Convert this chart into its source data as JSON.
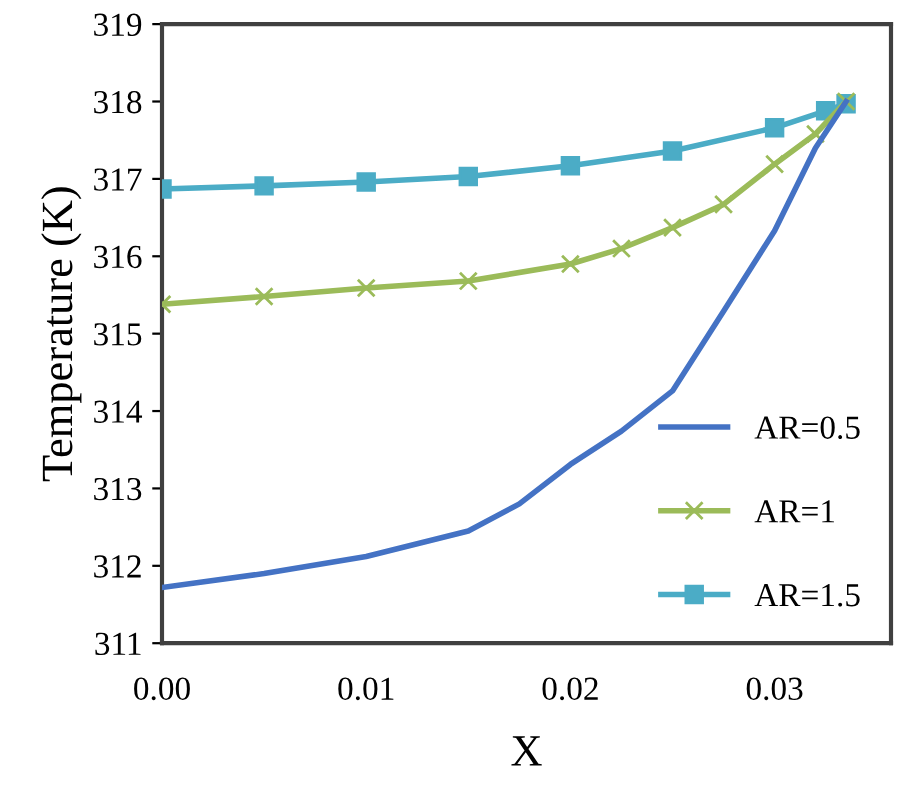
{
  "chart_data": {
    "type": "line",
    "xlabel": "X",
    "ylabel": "Temperature (K)",
    "xlim": [
      0,
      0.0357
    ],
    "ylim": [
      311,
      319
    ],
    "xticks": [
      {
        "value": 0,
        "label": "0.00"
      },
      {
        "value": 0.01,
        "label": "0.01"
      },
      {
        "value": 0.02,
        "label": "0.02"
      },
      {
        "value": 0.03,
        "label": "0.03"
      }
    ],
    "yticks": [
      311,
      312,
      313,
      314,
      315,
      316,
      317,
      318,
      319
    ],
    "grid": false,
    "legend": "lower right",
    "series": [
      {
        "name": "AR=0.5",
        "color": "#4472c4",
        "marker": "none",
        "x": [
          0,
          0.005,
          0.01,
          0.015,
          0.0175,
          0.02,
          0.0225,
          0.025,
          0.0275,
          0.03,
          0.032,
          0.0335
        ],
        "values": [
          311.72,
          311.9,
          312.12,
          312.45,
          312.8,
          313.31,
          313.74,
          314.26,
          315.29,
          316.33,
          317.4,
          318
        ]
      },
      {
        "name": "AR=1",
        "color": "#9bbb59",
        "marker": "cross",
        "x": [
          0,
          0.005,
          0.01,
          0.015,
          0.02,
          0.0225,
          0.025,
          0.0275,
          0.03,
          0.032,
          0.0335
        ],
        "values": [
          315.38,
          315.48,
          315.59,
          315.68,
          315.9,
          316.1,
          316.37,
          316.67,
          317.19,
          317.58,
          318
        ]
      },
      {
        "name": "AR=1.5",
        "color": "#4bacc6",
        "marker": "square",
        "x": [
          0,
          0.005,
          0.01,
          0.015,
          0.02,
          0.025,
          0.03,
          0.0325,
          0.0335
        ],
        "values": [
          316.87,
          316.91,
          316.96,
          317.03,
          317.17,
          317.36,
          317.66,
          317.88,
          317.97
        ]
      }
    ]
  }
}
